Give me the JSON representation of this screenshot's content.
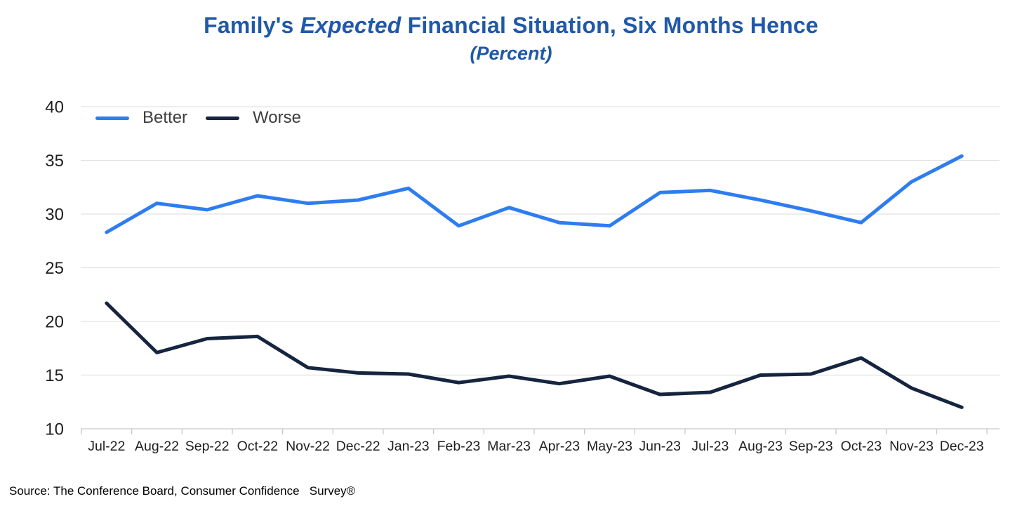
{
  "header": {
    "title_part1": "Family's ",
    "title_italic": "Expected",
    "title_part2": " Financial Situation, Six Months Hence",
    "subtitle": "(Percent)"
  },
  "legend": [
    {
      "label": "Better",
      "color": "#2E7DF0"
    },
    {
      "label": "Worse",
      "color": "#16253F"
    }
  ],
  "chart_data": {
    "type": "line",
    "title": "Family's Expected Financial Situation, Six Months Hence",
    "subtitle": "(Percent)",
    "categories": [
      "Jul-22",
      "Aug-22",
      "Sep-22",
      "Oct-22",
      "Nov-22",
      "Dec-22",
      "Jan-23",
      "Feb-23",
      "Mar-23",
      "Apr-23",
      "May-23",
      "Jun-23",
      "Jul-23",
      "Aug-23",
      "Sep-23",
      "Oct-23",
      "Nov-23",
      "Dec-23"
    ],
    "series": [
      {
        "name": "Better",
        "color": "#2E7DF0",
        "values": [
          28.3,
          31.0,
          30.4,
          31.7,
          31.0,
          31.3,
          32.4,
          28.9,
          30.6,
          29.2,
          28.9,
          32.0,
          32.2,
          31.3,
          30.3,
          29.2,
          33.0,
          35.4
        ]
      },
      {
        "name": "Worse",
        "color": "#16253F",
        "values": [
          21.7,
          17.1,
          18.4,
          18.6,
          15.7,
          15.2,
          15.1,
          14.3,
          14.9,
          14.2,
          14.9,
          13.2,
          13.4,
          15.0,
          15.1,
          16.6,
          13.8,
          12.0
        ]
      }
    ],
    "ylim": [
      10,
      40
    ],
    "yticks": [
      10,
      15,
      20,
      25,
      30,
      35,
      40
    ],
    "grid": true,
    "legend_position": "top-left",
    "xlabel": "",
    "ylabel": ""
  },
  "source": "Source: The Conference Board, Consumer Confidence   Survey®",
  "colors": {
    "title": "#2159A8",
    "grid": "#E2E2E2",
    "axis": "#D2D2D2",
    "tick": "#C8C8C8",
    "axis_label": "#1F1F1F",
    "legend_text": "#3D3D3D",
    "background": "#FFFFFF"
  }
}
